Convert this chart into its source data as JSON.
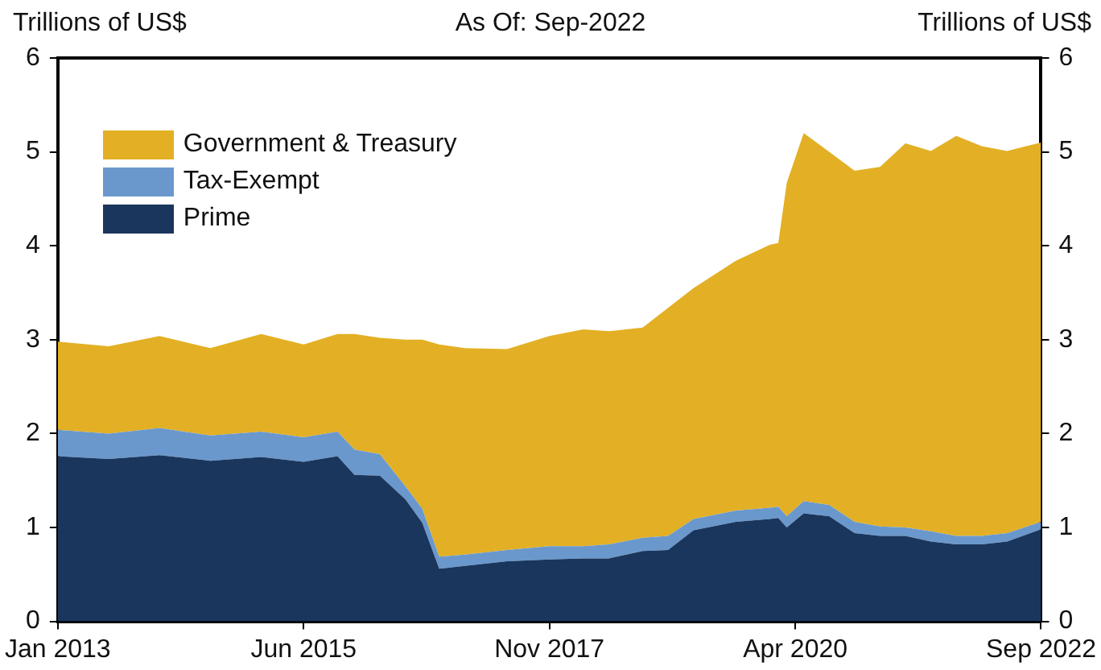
{
  "chart_data": {
    "type": "area",
    "stacked": true,
    "title": "As Of: Sep-2022",
    "ylabel": "Trillions of US$",
    "y2label": "Trillions of US$",
    "x": [
      "2013-01",
      "2013-07",
      "2014-01",
      "2014-07",
      "2015-01",
      "2015-06",
      "2015-10",
      "2015-12",
      "2016-03",
      "2016-06",
      "2016-08",
      "2016-10",
      "2017-01",
      "2017-06",
      "2017-11",
      "2018-03",
      "2018-06",
      "2018-10",
      "2019-01",
      "2019-04",
      "2019-09",
      "2020-01",
      "2020-02",
      "2020-03",
      "2020-05",
      "2020-08",
      "2020-11",
      "2021-02",
      "2021-05",
      "2021-08",
      "2021-11",
      "2022-02",
      "2022-05",
      "2022-09"
    ],
    "series": [
      {
        "name": "Prime",
        "color": "#1a365d",
        "values": [
          1.76,
          1.73,
          1.77,
          1.71,
          1.75,
          1.7,
          1.76,
          1.56,
          1.55,
          1.3,
          1.05,
          0.56,
          0.59,
          0.64,
          0.66,
          0.67,
          0.67,
          0.75,
          0.76,
          0.97,
          1.06,
          1.09,
          1.1,
          1.0,
          1.15,
          1.12,
          0.94,
          0.91,
          0.91,
          0.85,
          0.82,
          0.82,
          0.85,
          0.98
        ]
      },
      {
        "name": "Tax-Exempt",
        "color": "#6a98cc",
        "values": [
          0.28,
          0.27,
          0.29,
          0.27,
          0.27,
          0.26,
          0.26,
          0.27,
          0.23,
          0.14,
          0.15,
          0.13,
          0.12,
          0.12,
          0.14,
          0.13,
          0.15,
          0.14,
          0.15,
          0.12,
          0.12,
          0.12,
          0.12,
          0.12,
          0.13,
          0.12,
          0.12,
          0.1,
          0.09,
          0.11,
          0.09,
          0.09,
          0.09,
          0.08
        ]
      },
      {
        "name": "Government & Treasury",
        "color": "#e3b025",
        "values": [
          0.94,
          0.93,
          0.98,
          0.93,
          1.04,
          0.99,
          1.04,
          1.23,
          1.24,
          1.56,
          1.8,
          2.26,
          2.2,
          2.14,
          2.24,
          2.31,
          2.27,
          2.24,
          2.43,
          2.46,
          2.66,
          2.8,
          2.81,
          3.55,
          3.92,
          3.76,
          3.74,
          3.83,
          4.09,
          4.05,
          4.26,
          4.15,
          4.07,
          4.04
        ]
      }
    ],
    "xlim": [
      "2013-01",
      "2022-09"
    ],
    "xticks": [
      {
        "value": "2013-01",
        "label": "Jan 2013"
      },
      {
        "value": "2015-06",
        "label": "Jun 2015"
      },
      {
        "value": "2017-11",
        "label": "Nov 2017"
      },
      {
        "value": "2020-04",
        "label": "Apr 2020"
      },
      {
        "value": "2022-09",
        "label": "Sep 2022"
      }
    ],
    "ylim": [
      0,
      6
    ],
    "yticks": [
      0,
      1,
      2,
      3,
      4,
      5,
      6
    ],
    "y2lim": [
      0,
      6
    ],
    "y2ticks": [
      0,
      1,
      2,
      3,
      4,
      5,
      6
    ],
    "grid": false,
    "legend": "top left"
  }
}
